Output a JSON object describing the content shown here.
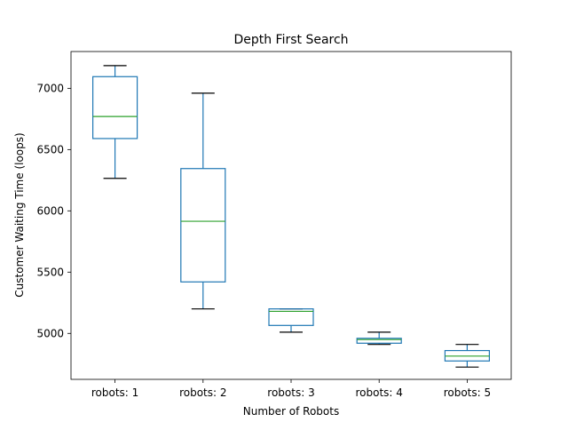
{
  "chart_data": {
    "type": "box",
    "title": "Depth First Search",
    "xlabel": "Number of Robots",
    "ylabel": "Customer Waiting Time (loops)",
    "ylim": [
      4625,
      7300
    ],
    "yticks": [
      5000,
      5500,
      6000,
      6500,
      7000
    ],
    "grid": false,
    "categories": [
      "robots: 1",
      "robots: 2",
      "robots: 3",
      "robots: 4",
      "robots: 5"
    ],
    "boxes": [
      {
        "whislo": 6265,
        "q1": 6590,
        "med": 6770,
        "q3": 7095,
        "whishi": 7185
      },
      {
        "whislo": 5200,
        "q1": 5420,
        "med": 5915,
        "q3": 6345,
        "whishi": 6960
      },
      {
        "whislo": 5010,
        "q1": 5065,
        "med": 5180,
        "q3": 5200,
        "whishi": 5200
      },
      {
        "whislo": 4910,
        "q1": 4920,
        "med": 4950,
        "q3": 4960,
        "whishi": 5010
      },
      {
        "whislo": 4725,
        "q1": 4775,
        "med": 4815,
        "q3": 4860,
        "whishi": 4910
      }
    ],
    "colors": {
      "box": "#1f77b4",
      "median": "#2ca02c",
      "cap": "#000000",
      "axis": "#000000"
    }
  }
}
